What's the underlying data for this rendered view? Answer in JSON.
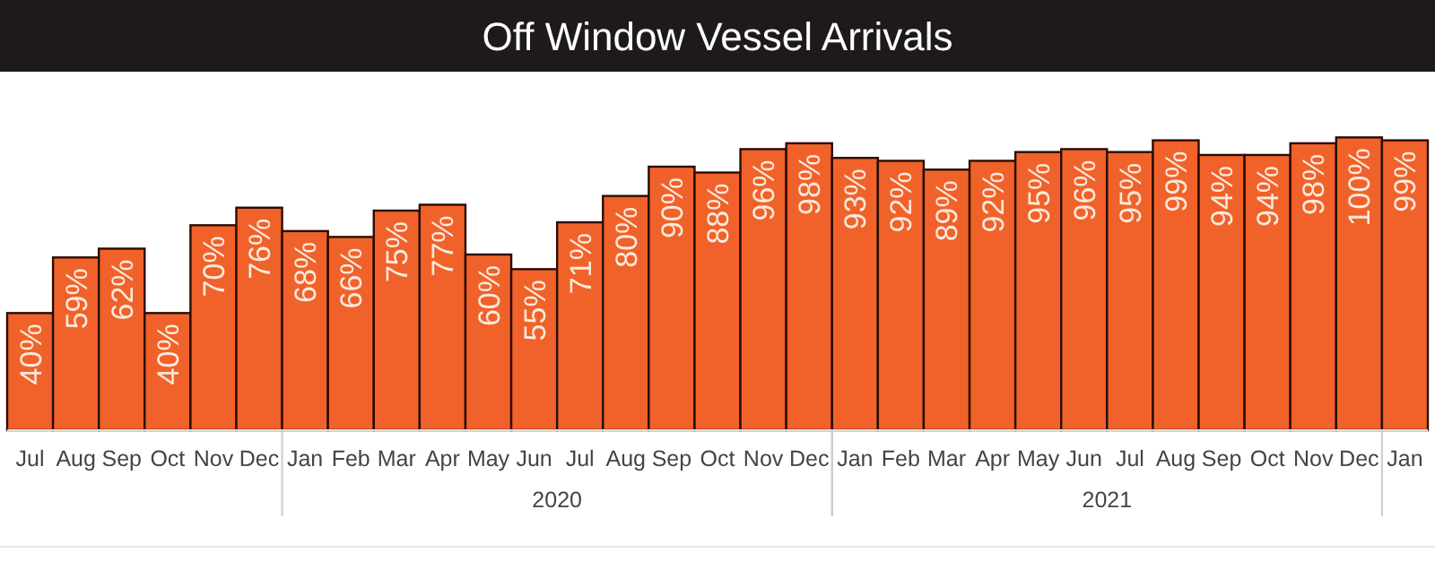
{
  "chart_data": {
    "type": "bar",
    "title": "Off Window Vessel Arrivals",
    "categories": [
      "Jul",
      "Aug",
      "Sep",
      "Oct",
      "Nov",
      "Dec",
      "Jan",
      "Feb",
      "Mar",
      "Apr",
      "May",
      "Jun",
      "Jul",
      "Aug",
      "Sep",
      "Oct",
      "Nov",
      "Dec",
      "Jan",
      "Feb",
      "Mar",
      "Apr",
      "May",
      "Jun",
      "Jul",
      "Aug",
      "Sep",
      "Oct",
      "Nov",
      "Dec",
      "Jan"
    ],
    "values": [
      40,
      59,
      62,
      40,
      70,
      76,
      68,
      66,
      75,
      77,
      60,
      55,
      71,
      80,
      90,
      88,
      96,
      98,
      93,
      92,
      89,
      92,
      95,
      96,
      95,
      99,
      94,
      94,
      98,
      100,
      99
    ],
    "value_labels": [
      "40%",
      "59%",
      "62%",
      "40%",
      "70%",
      "76%",
      "68%",
      "66%",
      "75%",
      "77%",
      "60%",
      "55%",
      "71%",
      "80%",
      "90%",
      "88%",
      "96%",
      "98%",
      "93%",
      "92%",
      "89%",
      "92%",
      "95%",
      "96%",
      "95%",
      "99%",
      "94%",
      "94%",
      "98%",
      "100%",
      "99%"
    ],
    "annotations": [
      "2020",
      "2021"
    ],
    "color": "#f0622a",
    "tick_labels": "x"
  }
}
